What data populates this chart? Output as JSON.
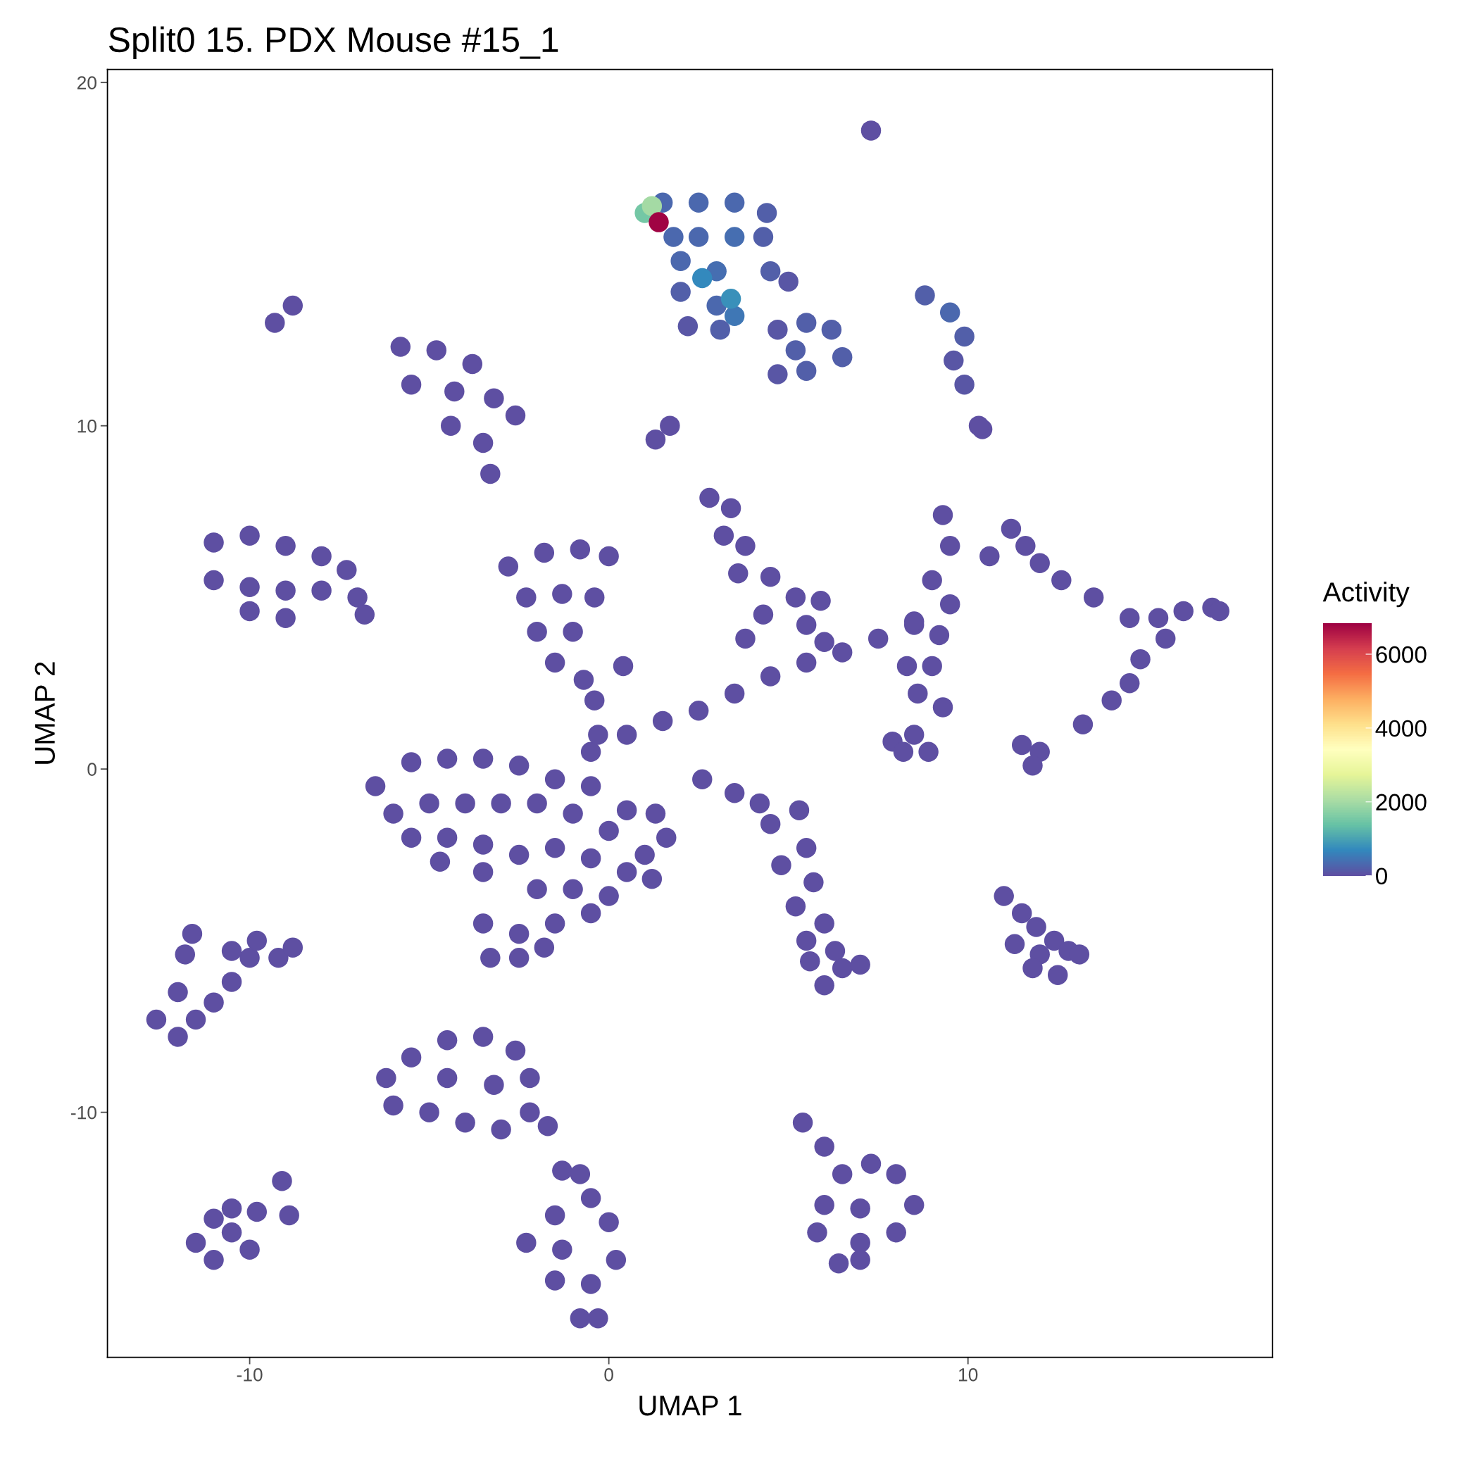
{
  "chart_data": {
    "type": "scatter",
    "title": "Split0 15. PDX Mouse #15_1",
    "xlabel": "UMAP 1",
    "ylabel": "UMAP 2",
    "clabel": "Activity",
    "xlim": [
      -13.96,
      18.48
    ],
    "xticks": [
      -10,
      0,
      10
    ],
    "ylim": [
      -17.14,
      20.38
    ],
    "yticks": [
      -10,
      0,
      10,
      20
    ],
    "clim": [
      0,
      6845
    ],
    "cticks": [
      0,
      2000,
      4000,
      6000
    ],
    "grid": false,
    "marker": "circle",
    "x": [
      1.0,
      1.2,
      1.5,
      2.5,
      3.5,
      4.4,
      4.3,
      3.5,
      2.5,
      1.8,
      2.0,
      3.0,
      2.0,
      3.0,
      3.5,
      4.5,
      5.0,
      2.2,
      3.1,
      4.7,
      3.4,
      2.6,
      1.39,
      5.5,
      6.2,
      5.2,
      6.5,
      5.5,
      4.7,
      7.3,
      8.8,
      9.5,
      9.9,
      9.6,
      9.9,
      10.4,
      10.3,
      -9.3,
      -8.8,
      -5.8,
      -4.8,
      -3.8,
      -5.5,
      -4.3,
      -3.2,
      -2.6,
      -4.4,
      -3.5,
      -3.3,
      1.3,
      1.7,
      -11.0,
      -10.0,
      -9.0,
      -8.0,
      -7.3,
      -11.0,
      -10.0,
      -9.0,
      -8.0,
      -7.0,
      -6.8,
      -10.0,
      -9.0,
      -2.8,
      -1.8,
      -0.8,
      0.0,
      -2.3,
      -1.3,
      -0.4,
      -2.0,
      -1.0,
      -1.5,
      -0.7,
      0.4,
      -0.5,
      0.5,
      1.5,
      2.5,
      3.5,
      4.5,
      5.5,
      6.5,
      7.5,
      8.5,
      -0.4,
      -0.3,
      2.8,
      3.4,
      3.2,
      3.8,
      3.6,
      4.5,
      5.2,
      5.9,
      4.3,
      5.5,
      6.0,
      3.8,
      9.3,
      9.5,
      9.0,
      9.5,
      8.5,
      9.2,
      8.3,
      9.0,
      8.6,
      9.3,
      8.5,
      7.9,
      8.9,
      8.2,
      10.6,
      11.2,
      11.6,
      12.0,
      12.6,
      13.5,
      14.5,
      15.3,
      16.0,
      16.8,
      17.0,
      15.5,
      14.8,
      14.5,
      14.0,
      13.2,
      11.5,
      12.0,
      11.8,
      -6.5,
      -5.5,
      -4.5,
      -3.5,
      -2.5,
      -1.5,
      -0.5,
      0.5,
      1.3,
      1.6,
      -6.0,
      -5.0,
      -4.0,
      -3.0,
      -2.0,
      -1.0,
      0.0,
      1.0,
      -5.5,
      -4.5,
      -3.5,
      -2.5,
      -1.5,
      -0.5,
      0.5,
      1.2,
      -3.5,
      -2.0,
      -1.0,
      0.0,
      -3.5,
      -2.5,
      -1.5,
      -0.5,
      -3.3,
      -2.5,
      -1.8,
      -4.7,
      2.6,
      3.5,
      4.2,
      5.3,
      4.5,
      5.5,
      4.8,
      5.7,
      5.2,
      6.0,
      5.5,
      6.3,
      5.6,
      6.5,
      6.0,
      7.0,
      11.0,
      11.5,
      11.9,
      12.4,
      12.8,
      13.1,
      11.3,
      12.0,
      12.5,
      11.8,
      -12.6,
      -12.0,
      -12.0,
      -11.8,
      -11.6,
      -11.0,
      -10.5,
      -10.0,
      -9.8,
      -9.2,
      -8.8,
      -11.5,
      -10.5,
      -6.2,
      -5.5,
      -4.5,
      -3.5,
      -2.6,
      -2.2,
      -2.2,
      -3.0,
      -4.0,
      -5.0,
      -6.0,
      -4.5,
      -3.2,
      -1.7,
      -1.3,
      -0.8,
      -0.5,
      -1.5,
      0.0,
      -2.3,
      -1.3,
      0.2,
      -1.5,
      -0.5,
      -0.3,
      -0.8,
      -11.5,
      -11.0,
      -10.5,
      -9.8,
      -9.1,
      -8.9,
      -10.0,
      -11.0,
      -10.5,
      5.4,
      6.0,
      6.5,
      7.3,
      8.0,
      8.5,
      6.0,
      7.0,
      5.8,
      7.0,
      8.0,
      7.0,
      6.4
    ],
    "values": [
      16.2,
      16.4,
      16.5,
      16.5,
      16.5,
      16.2,
      15.5,
      15.5,
      15.5,
      15.5,
      14.8,
      14.5,
      13.9,
      13.5,
      13.2,
      14.5,
      14.2,
      12.9,
      12.8,
      12.8,
      13.7,
      14.3,
      15.93,
      13.0,
      12.8,
      12.2,
      12.0,
      11.6,
      11.5,
      18.6,
      13.8,
      13.3,
      12.6,
      11.9,
      11.2,
      9.9,
      10.0,
      13.0,
      13.5,
      12.3,
      12.2,
      11.8,
      11.2,
      11.0,
      10.8,
      10.3,
      10.0,
      9.5,
      8.6,
      9.6,
      10.0,
      6.6,
      6.8,
      6.5,
      6.2,
      5.8,
      5.5,
      5.3,
      5.2,
      5.2,
      5.0,
      4.5,
      4.6,
      4.4,
      5.9,
      6.3,
      6.4,
      6.2,
      5.0,
      5.1,
      5.0,
      4.0,
      4.0,
      3.1,
      2.6,
      3.0,
      0.5,
      1.0,
      1.4,
      1.7,
      2.2,
      2.7,
      3.1,
      3.4,
      3.8,
      4.2,
      2.0,
      1.0,
      7.9,
      7.6,
      6.8,
      6.5,
      5.7,
      5.6,
      5.0,
      4.9,
      4.5,
      4.2,
      3.7,
      3.8,
      7.4,
      6.5,
      5.5,
      4.8,
      4.3,
      3.9,
      3.0,
      3.0,
      2.2,
      1.8,
      1.0,
      0.8,
      0.5,
      0.5,
      6.2,
      7.0,
      6.5,
      6.0,
      5.5,
      5.0,
      4.4,
      4.4,
      4.6,
      4.7,
      4.6,
      3.8,
      3.2,
      2.5,
      2.0,
      1.3,
      0.7,
      0.5,
      0.1,
      -0.5,
      0.2,
      0.3,
      0.3,
      0.1,
      -0.3,
      -0.5,
      -1.2,
      -1.3,
      -2.0,
      -1.3,
      -1.0,
      -1.0,
      -1.0,
      -1.0,
      -1.3,
      -1.8,
      -2.5,
      -2.0,
      -2.0,
      -2.2,
      -2.5,
      -2.3,
      -2.6,
      -3.0,
      -3.2,
      -3.0,
      -3.5,
      -3.5,
      -3.7,
      -4.5,
      -4.8,
      -4.5,
      -4.2,
      -5.5,
      -5.5,
      -5.2,
      -2.7,
      -0.3,
      -0.7,
      -1.0,
      -1.2,
      -1.6,
      -2.3,
      -2.8,
      -3.3,
      -4.0,
      -4.5,
      -5.0,
      -5.3,
      -5.6,
      -5.8,
      -6.3,
      -5.7,
      -3.7,
      -4.2,
      -4.6,
      -5.0,
      -5.3,
      -5.4,
      -5.1,
      -5.4,
      -6.0,
      -5.8,
      -7.3,
      -7.8,
      -6.5,
      -5.4,
      -4.8,
      -6.8,
      -6.2,
      -5.5,
      -5.0,
      -5.5,
      -5.2,
      -7.3,
      -5.3,
      -9.0,
      -8.4,
      -7.9,
      -7.8,
      -8.2,
      -9.0,
      -10.0,
      -10.5,
      -10.3,
      -10.0,
      -9.8,
      -9.0,
      -9.2,
      -10.4,
      -11.7,
      -11.8,
      -12.5,
      -13.0,
      -13.2,
      -13.8,
      -14.0,
      -14.3,
      -14.9,
      -15.0,
      -16.0,
      -16.0,
      -13.8,
      -13.1,
      -12.8,
      -12.9,
      -12.0,
      -13.0,
      -14.0,
      -14.3,
      -13.5,
      -10.3,
      -11.0,
      -11.8,
      -11.5,
      -11.8,
      -12.7,
      -12.7,
      -12.8,
      -13.5,
      -13.8,
      -13.5,
      -14.3,
      -14.4
    ],
    "cvalues": [
      1500,
      2000,
      300,
      300,
      300,
      200,
      200,
      400,
      300,
      300,
      300,
      400,
      200,
      300,
      500,
      200,
      100,
      100,
      200,
      100,
      800,
      700,
      6800,
      200,
      200,
      200,
      200,
      200,
      100,
      0,
      200,
      300,
      200,
      100,
      100,
      0,
      0,
      0,
      0,
      0,
      0,
      0,
      0,
      0,
      0,
      0,
      0,
      0,
      0,
      0,
      0,
      0,
      0,
      0,
      0,
      0,
      0,
      0,
      0,
      0,
      0,
      0,
      0,
      0,
      0,
      0,
      0,
      0,
      0,
      0,
      0,
      0,
      0,
      0,
      0,
      0,
      0,
      0,
      0,
      0,
      0,
      0,
      0,
      0,
      0,
      0,
      0,
      0,
      0,
      0,
      0,
      0,
      0,
      0,
      0,
      0,
      0,
      0,
      0,
      0,
      0,
      0,
      0,
      0,
      0,
      0,
      0,
      0,
      0,
      0,
      0,
      0,
      0,
      0,
      0,
      0,
      0,
      0,
      0,
      0,
      0,
      0,
      0,
      0,
      0,
      0,
      0,
      0,
      0,
      0,
      0,
      0,
      0,
      0,
      0,
      0,
      0,
      0,
      0,
      0,
      0,
      0,
      0,
      0,
      0,
      0,
      0,
      0,
      0,
      0,
      0,
      0,
      0,
      0,
      0,
      0,
      0,
      0,
      0,
      0,
      0,
      0,
      0,
      0,
      0,
      0,
      0,
      0,
      0,
      0,
      0,
      0,
      0,
      0,
      0,
      0,
      0,
      0,
      0,
      0,
      0,
      0,
      0,
      0,
      0,
      0,
      0,
      0,
      0,
      0,
      0,
      0,
      0,
      0,
      0,
      0,
      0,
      0,
      0,
      0,
      0,
      0,
      0,
      0,
      0,
      0,
      0,
      0,
      0,
      0,
      0,
      0,
      0,
      0,
      0,
      0,
      0,
      0,
      0,
      0,
      0,
      0,
      0,
      0,
      0,
      0,
      0,
      0,
      0,
      0,
      0,
      0,
      0,
      0,
      0,
      0,
      0,
      0,
      0,
      0,
      0,
      0,
      0,
      0,
      0,
      0,
      0,
      0,
      0,
      0,
      0,
      0,
      0,
      0,
      0,
      0,
      0,
      0
    ]
  }
}
